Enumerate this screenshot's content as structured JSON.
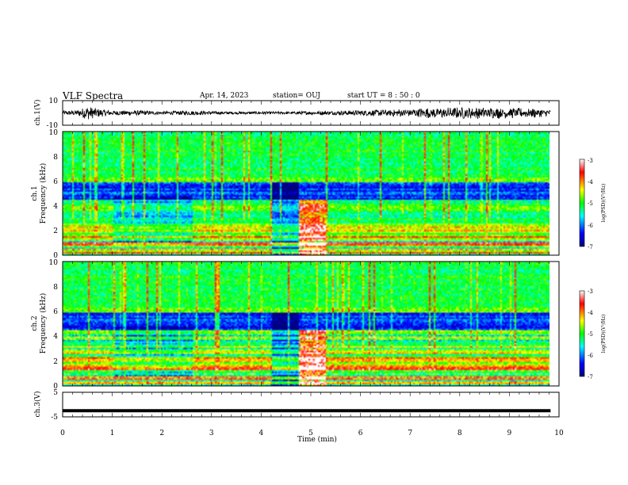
{
  "header": {
    "title": "VLF Spectra",
    "date": "Apr. 14, 2023",
    "station": "station= OUJ",
    "start": "start UT =  8 : 50 : 0"
  },
  "chart_data": [
    {
      "type": "line",
      "panel": "ch1-waveform",
      "ylabel": "ch.1(V)",
      "ylim": [
        -10,
        10
      ],
      "ytick_labels": [
        "10",
        "-10"
      ],
      "x_range_min": [
        0,
        9.83
      ],
      "baseline": 0,
      "amplitude_envelope": [
        {
          "x": 0.0,
          "amp": 1.6
        },
        {
          "x": 0.3,
          "amp": 2.2
        },
        {
          "x": 0.5,
          "amp": 5.5
        },
        {
          "x": 0.7,
          "amp": 3.5
        },
        {
          "x": 1.0,
          "amp": 1.8
        },
        {
          "x": 1.5,
          "amp": 2.0
        },
        {
          "x": 2.0,
          "amp": 1.2
        },
        {
          "x": 2.5,
          "amp": 1.8
        },
        {
          "x": 3.0,
          "amp": 1.4
        },
        {
          "x": 3.5,
          "amp": 1.0
        },
        {
          "x": 4.0,
          "amp": 1.2
        },
        {
          "x": 4.5,
          "amp": 1.0
        },
        {
          "x": 5.0,
          "amp": 1.4
        },
        {
          "x": 5.5,
          "amp": 1.6
        },
        {
          "x": 6.0,
          "amp": 2.0
        },
        {
          "x": 6.5,
          "amp": 2.8
        },
        {
          "x": 7.0,
          "amp": 4.0
        },
        {
          "x": 7.5,
          "amp": 4.5
        },
        {
          "x": 8.0,
          "amp": 5.0
        },
        {
          "x": 8.5,
          "amp": 5.0
        },
        {
          "x": 9.0,
          "amp": 4.5
        },
        {
          "x": 9.5,
          "amp": 4.0
        },
        {
          "x": 9.83,
          "amp": 3.0
        }
      ]
    },
    {
      "type": "heatmap",
      "panel": "ch1-spectrogram",
      "ylabel": "ch.1\nFrequency (kHz)",
      "ylim": [
        0,
        10
      ],
      "ytick_labels": [
        "0",
        "2",
        "4",
        "6",
        "8",
        "10"
      ],
      "x_range_min": [
        0,
        9.83
      ],
      "colorbar": {
        "label": "log(PSD)(V²/Hz)",
        "range": [
          -7,
          -3
        ],
        "tick_labels": [
          "-3",
          "-4",
          "-5",
          "-6",
          "-7"
        ]
      }
    },
    {
      "type": "heatmap",
      "panel": "ch2-spectrogram",
      "ylabel": "ch.2\nFrequency (kHz)",
      "ylim": [
        0,
        10
      ],
      "ytick_labels": [
        "0",
        "2",
        "4",
        "6",
        "8",
        "10"
      ],
      "x_range_min": [
        0,
        9.83
      ],
      "colorbar": {
        "label": "log(PSD)(V²/Hz)",
        "range": [
          -7,
          -3
        ],
        "tick_labels": [
          "-3",
          "-4",
          "-5",
          "-6",
          "-7"
        ]
      }
    },
    {
      "type": "line",
      "panel": "ch3-waveform",
      "ylabel": "ch.3(V)",
      "ylim": [
        -5,
        5
      ],
      "ytick_labels": [
        "5",
        "-5"
      ],
      "x": [
        0,
        9.83
      ],
      "values": [
        -2.5,
        -2.5
      ]
    }
  ],
  "xaxis": {
    "label": "Time (min)",
    "range": [
      0,
      10
    ],
    "tick_labels": [
      "0",
      "1",
      "2",
      "3",
      "4",
      "5",
      "6",
      "7",
      "8",
      "9",
      "10"
    ]
  }
}
